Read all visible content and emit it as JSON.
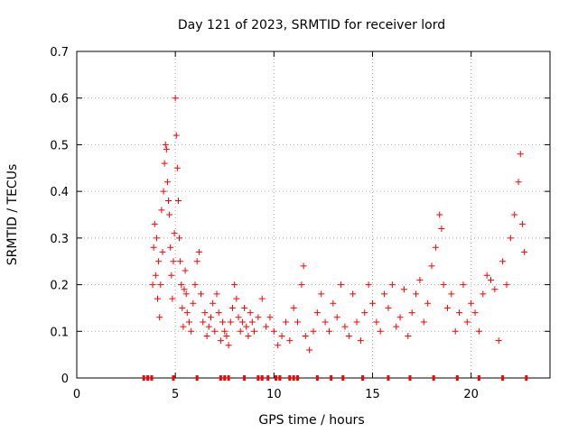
{
  "chart_data": {
    "type": "scatter",
    "title": "Day 121 of 2023, SRMTID for receiver lord",
    "xlabel": "GPS time / hours",
    "ylabel": "SRMTID / TECUs",
    "xlim": [
      0,
      24
    ],
    "ylim": [
      0,
      0.7
    ],
    "x_ticks": [
      0,
      5,
      10,
      15,
      20
    ],
    "x_tick_labels": [
      "0",
      "5",
      "10",
      "15",
      "20"
    ],
    "y_ticks": [
      0,
      0.1,
      0.2,
      0.3,
      0.4,
      0.5,
      0.6,
      0.7
    ],
    "y_tick_labels": [
      "0",
      "0.1",
      "0.2",
      "0.3",
      "0.4",
      "0.5",
      "0.6",
      "0.7"
    ],
    "grid": true,
    "marker": "+",
    "color": "#ff0000",
    "series": [
      {
        "name": "SRMTID",
        "points": [
          [
            3.85,
            0.2
          ],
          [
            3.9,
            0.28
          ],
          [
            3.95,
            0.33
          ],
          [
            4.0,
            0.22
          ],
          [
            4.05,
            0.3
          ],
          [
            4.1,
            0.17
          ],
          [
            4.15,
            0.25
          ],
          [
            4.2,
            0.13
          ],
          [
            4.25,
            0.2
          ],
          [
            4.3,
            0.36
          ],
          [
            4.35,
            0.27
          ],
          [
            4.4,
            0.4
          ],
          [
            4.45,
            0.46
          ],
          [
            4.5,
            0.5
          ],
          [
            4.55,
            0.49
          ],
          [
            4.6,
            0.42
          ],
          [
            4.65,
            0.38
          ],
          [
            4.7,
            0.35
          ],
          [
            4.75,
            0.28
          ],
          [
            4.8,
            0.22
          ],
          [
            4.85,
            0.17
          ],
          [
            4.9,
            0.25
          ],
          [
            4.95,
            0.31
          ],
          [
            5.0,
            0.6
          ],
          [
            5.05,
            0.52
          ],
          [
            5.1,
            0.45
          ],
          [
            5.15,
            0.38
          ],
          [
            5.2,
            0.3
          ],
          [
            5.25,
            0.25
          ],
          [
            5.3,
            0.2
          ],
          [
            5.35,
            0.15
          ],
          [
            5.4,
            0.11
          ],
          [
            5.45,
            0.19
          ],
          [
            5.5,
            0.23
          ],
          [
            5.55,
            0.18
          ],
          [
            5.6,
            0.14
          ],
          [
            5.7,
            0.12
          ],
          [
            5.8,
            0.1
          ],
          [
            5.9,
            0.16
          ],
          [
            6.0,
            0.2
          ],
          [
            6.1,
            0.25
          ],
          [
            6.2,
            0.27
          ],
          [
            6.3,
            0.18
          ],
          [
            6.4,
            0.12
          ],
          [
            6.5,
            0.14
          ],
          [
            6.6,
            0.09
          ],
          [
            6.7,
            0.11
          ],
          [
            6.8,
            0.13
          ],
          [
            6.9,
            0.16
          ],
          [
            7.0,
            0.1
          ],
          [
            7.1,
            0.18
          ],
          [
            7.2,
            0.14
          ],
          [
            7.3,
            0.08
          ],
          [
            7.4,
            0.12
          ],
          [
            7.5,
            0.1
          ],
          [
            7.6,
            0.09
          ],
          [
            7.7,
            0.07
          ],
          [
            7.8,
            0.12
          ],
          [
            7.9,
            0.15
          ],
          [
            8.0,
            0.2
          ],
          [
            8.1,
            0.17
          ],
          [
            8.2,
            0.13
          ],
          [
            8.3,
            0.1
          ],
          [
            8.4,
            0.12
          ],
          [
            8.5,
            0.15
          ],
          [
            8.6,
            0.11
          ],
          [
            8.7,
            0.09
          ],
          [
            8.8,
            0.14
          ],
          [
            8.9,
            0.12
          ],
          [
            9.0,
            0.1
          ],
          [
            9.2,
            0.13
          ],
          [
            9.4,
            0.17
          ],
          [
            9.6,
            0.11
          ],
          [
            9.8,
            0.13
          ],
          [
            10.0,
            0.1
          ],
          [
            10.2,
            0.07
          ],
          [
            10.4,
            0.09
          ],
          [
            10.6,
            0.12
          ],
          [
            10.8,
            0.08
          ],
          [
            11.0,
            0.15
          ],
          [
            11.2,
            0.12
          ],
          [
            11.4,
            0.2
          ],
          [
            11.5,
            0.24
          ],
          [
            11.6,
            0.09
          ],
          [
            11.8,
            0.06
          ],
          [
            12.0,
            0.1
          ],
          [
            12.2,
            0.14
          ],
          [
            12.4,
            0.18
          ],
          [
            12.6,
            0.12
          ],
          [
            12.8,
            0.1
          ],
          [
            13.0,
            0.16
          ],
          [
            13.2,
            0.13
          ],
          [
            13.4,
            0.2
          ],
          [
            13.6,
            0.11
          ],
          [
            13.8,
            0.09
          ],
          [
            14.0,
            0.18
          ],
          [
            14.2,
            0.12
          ],
          [
            14.4,
            0.08
          ],
          [
            14.6,
            0.14
          ],
          [
            14.8,
            0.2
          ],
          [
            15.0,
            0.16
          ],
          [
            15.2,
            0.12
          ],
          [
            15.4,
            0.1
          ],
          [
            15.6,
            0.18
          ],
          [
            15.8,
            0.15
          ],
          [
            16.0,
            0.2
          ],
          [
            16.2,
            0.11
          ],
          [
            16.4,
            0.13
          ],
          [
            16.6,
            0.19
          ],
          [
            16.8,
            0.09
          ],
          [
            17.0,
            0.14
          ],
          [
            17.2,
            0.18
          ],
          [
            17.4,
            0.21
          ],
          [
            17.6,
            0.12
          ],
          [
            17.8,
            0.16
          ],
          [
            18.0,
            0.24
          ],
          [
            18.2,
            0.28
          ],
          [
            18.4,
            0.35
          ],
          [
            18.5,
            0.32
          ],
          [
            18.6,
            0.2
          ],
          [
            18.8,
            0.15
          ],
          [
            19.0,
            0.18
          ],
          [
            19.2,
            0.1
          ],
          [
            19.4,
            0.14
          ],
          [
            19.6,
            0.2
          ],
          [
            19.8,
            0.12
          ],
          [
            20.0,
            0.16
          ],
          [
            20.2,
            0.14
          ],
          [
            20.4,
            0.1
          ],
          [
            20.6,
            0.18
          ],
          [
            20.8,
            0.22
          ],
          [
            21.0,
            0.21
          ],
          [
            21.2,
            0.19
          ],
          [
            21.4,
            0.08
          ],
          [
            21.6,
            0.25
          ],
          [
            21.8,
            0.2
          ],
          [
            22.0,
            0.3
          ],
          [
            22.2,
            0.35
          ],
          [
            22.4,
            0.42
          ],
          [
            22.5,
            0.48
          ],
          [
            22.6,
            0.33
          ],
          [
            22.7,
            0.27
          ]
        ]
      }
    ],
    "rug_x": [
      3.4,
      3.6,
      3.8,
      4.9,
      6.1,
      7.3,
      7.5,
      7.7,
      8.5,
      9.2,
      9.4,
      9.7,
      10.1,
      10.3,
      10.8,
      11.0,
      11.2,
      12.2,
      12.9,
      13.5,
      14.5,
      15.8,
      16.9,
      18.1,
      19.3,
      20.4,
      21.6,
      22.8
    ]
  }
}
